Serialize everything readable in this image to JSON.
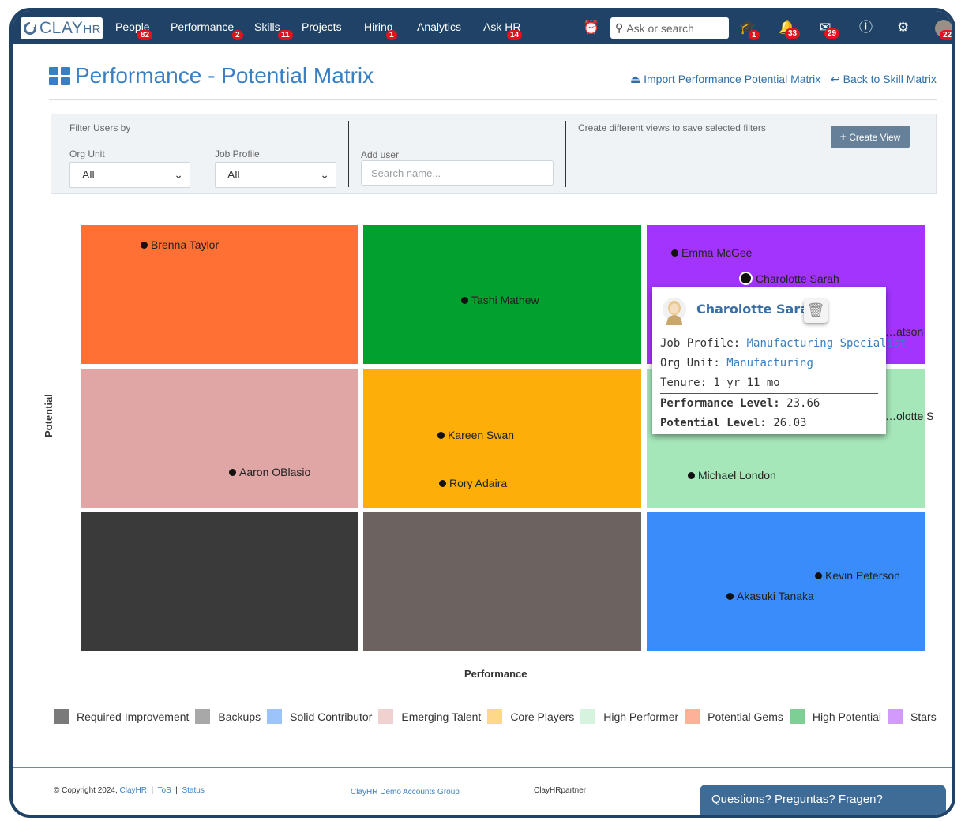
{
  "nav": {
    "logo": {
      "main": "CLAY",
      "suffix": "HR"
    },
    "items": [
      {
        "label": "People",
        "badge": "82"
      },
      {
        "label": "Performance",
        "badge": "2"
      },
      {
        "label": "Skills",
        "badge": "11"
      },
      {
        "label": "Projects",
        "badge": ""
      },
      {
        "label": "Hiring",
        "badge": "1"
      },
      {
        "label": "Analytics",
        "badge": ""
      },
      {
        "label": "Ask HR",
        "badge": "14"
      }
    ],
    "search_placeholder": "Ask or search",
    "icon_badges": {
      "learning": "1",
      "notifications": "33",
      "messages": "29",
      "avatar": "22"
    }
  },
  "header": {
    "title": "Performance - Potential Matrix",
    "import_link": "Import Performance Potential Matrix",
    "back_link": "Back to Skill Matrix"
  },
  "filters": {
    "section_label": "Filter Users by",
    "org_unit": {
      "label": "Org Unit",
      "value": "All"
    },
    "job_profile": {
      "label": "Job Profile",
      "value": "All"
    },
    "add_user": {
      "label": "Add user",
      "placeholder": "Search name..."
    },
    "views_text": "Create different views to save selected filters",
    "create_view": "Create View"
  },
  "matrix": {
    "y_label": "Potential",
    "x_label": "Performance",
    "cells": [
      {
        "category": "Potential Gems",
        "color": "#fe7034",
        "people": [
          "Brenna Taylor"
        ]
      },
      {
        "category": "High Potential",
        "color": "#02a12f",
        "people": [
          "Tashi Mathew"
        ]
      },
      {
        "category": "Stars",
        "color": "#a334fe",
        "people": [
          "Emma McGee",
          "Charolotte Sarah",
          "…atson"
        ]
      },
      {
        "category": "Emerging Talent",
        "color": "#e0a5a5",
        "people": [
          "Aaron OBlasio"
        ]
      },
      {
        "category": "Core Players",
        "color": "#fdae08",
        "people": [
          "Kareen Swan",
          "Rory Adaira"
        ]
      },
      {
        "category": "High Performer",
        "color": "#a6e7ba",
        "people": [
          "…olotte S",
          "Michael London"
        ]
      },
      {
        "category": "Required Improvement",
        "color": "#3a3a3a",
        "people": []
      },
      {
        "category": "Backups",
        "color": "#6c6260",
        "people": []
      },
      {
        "category": "Solid Contributor",
        "color": "#3b8cfb",
        "people": [
          "Kevin Peterson",
          "Akasuki Tanaka"
        ]
      }
    ]
  },
  "tooltip": {
    "name": "Charolotte Sarah",
    "job_profile_label": "Job Profile:",
    "job_profile": "Manufacturing Specialist",
    "org_unit_label": "Org Unit:",
    "org_unit": "Manufacturing",
    "tenure": "Tenure: 1 yr 11 mo",
    "performance_label": "Performance Level:",
    "performance": "23.66",
    "potential_label": "Potential Level:",
    "potential": "26.03"
  },
  "legend": [
    {
      "label": "Required Improvement",
      "color": "#7a7a7a"
    },
    {
      "label": "Backups",
      "color": "#a8a8a8"
    },
    {
      "label": "Solid Contributor",
      "color": "#9cc4fa"
    },
    {
      "label": "Emerging Talent",
      "color": "#f1d0d0"
    },
    {
      "label": "Core Players",
      "color": "#fdd78a"
    },
    {
      "label": "High Performer",
      "color": "#d5f3de"
    },
    {
      "label": "Potential Gems",
      "color": "#fdb198"
    },
    {
      "label": "High Potential",
      "color": "#7ecf94"
    },
    {
      "label": "Stars",
      "color": "#d19afb"
    }
  ],
  "footer": {
    "copyright": "© Copyright 2024,",
    "company_link": "ClayHR",
    "tos": "ToS",
    "status": "Status",
    "group_link": "ClayHR Demo Accounts Group",
    "partner": "ClayHRpartner",
    "help": "Questions? Preguntas? Fragen?"
  }
}
